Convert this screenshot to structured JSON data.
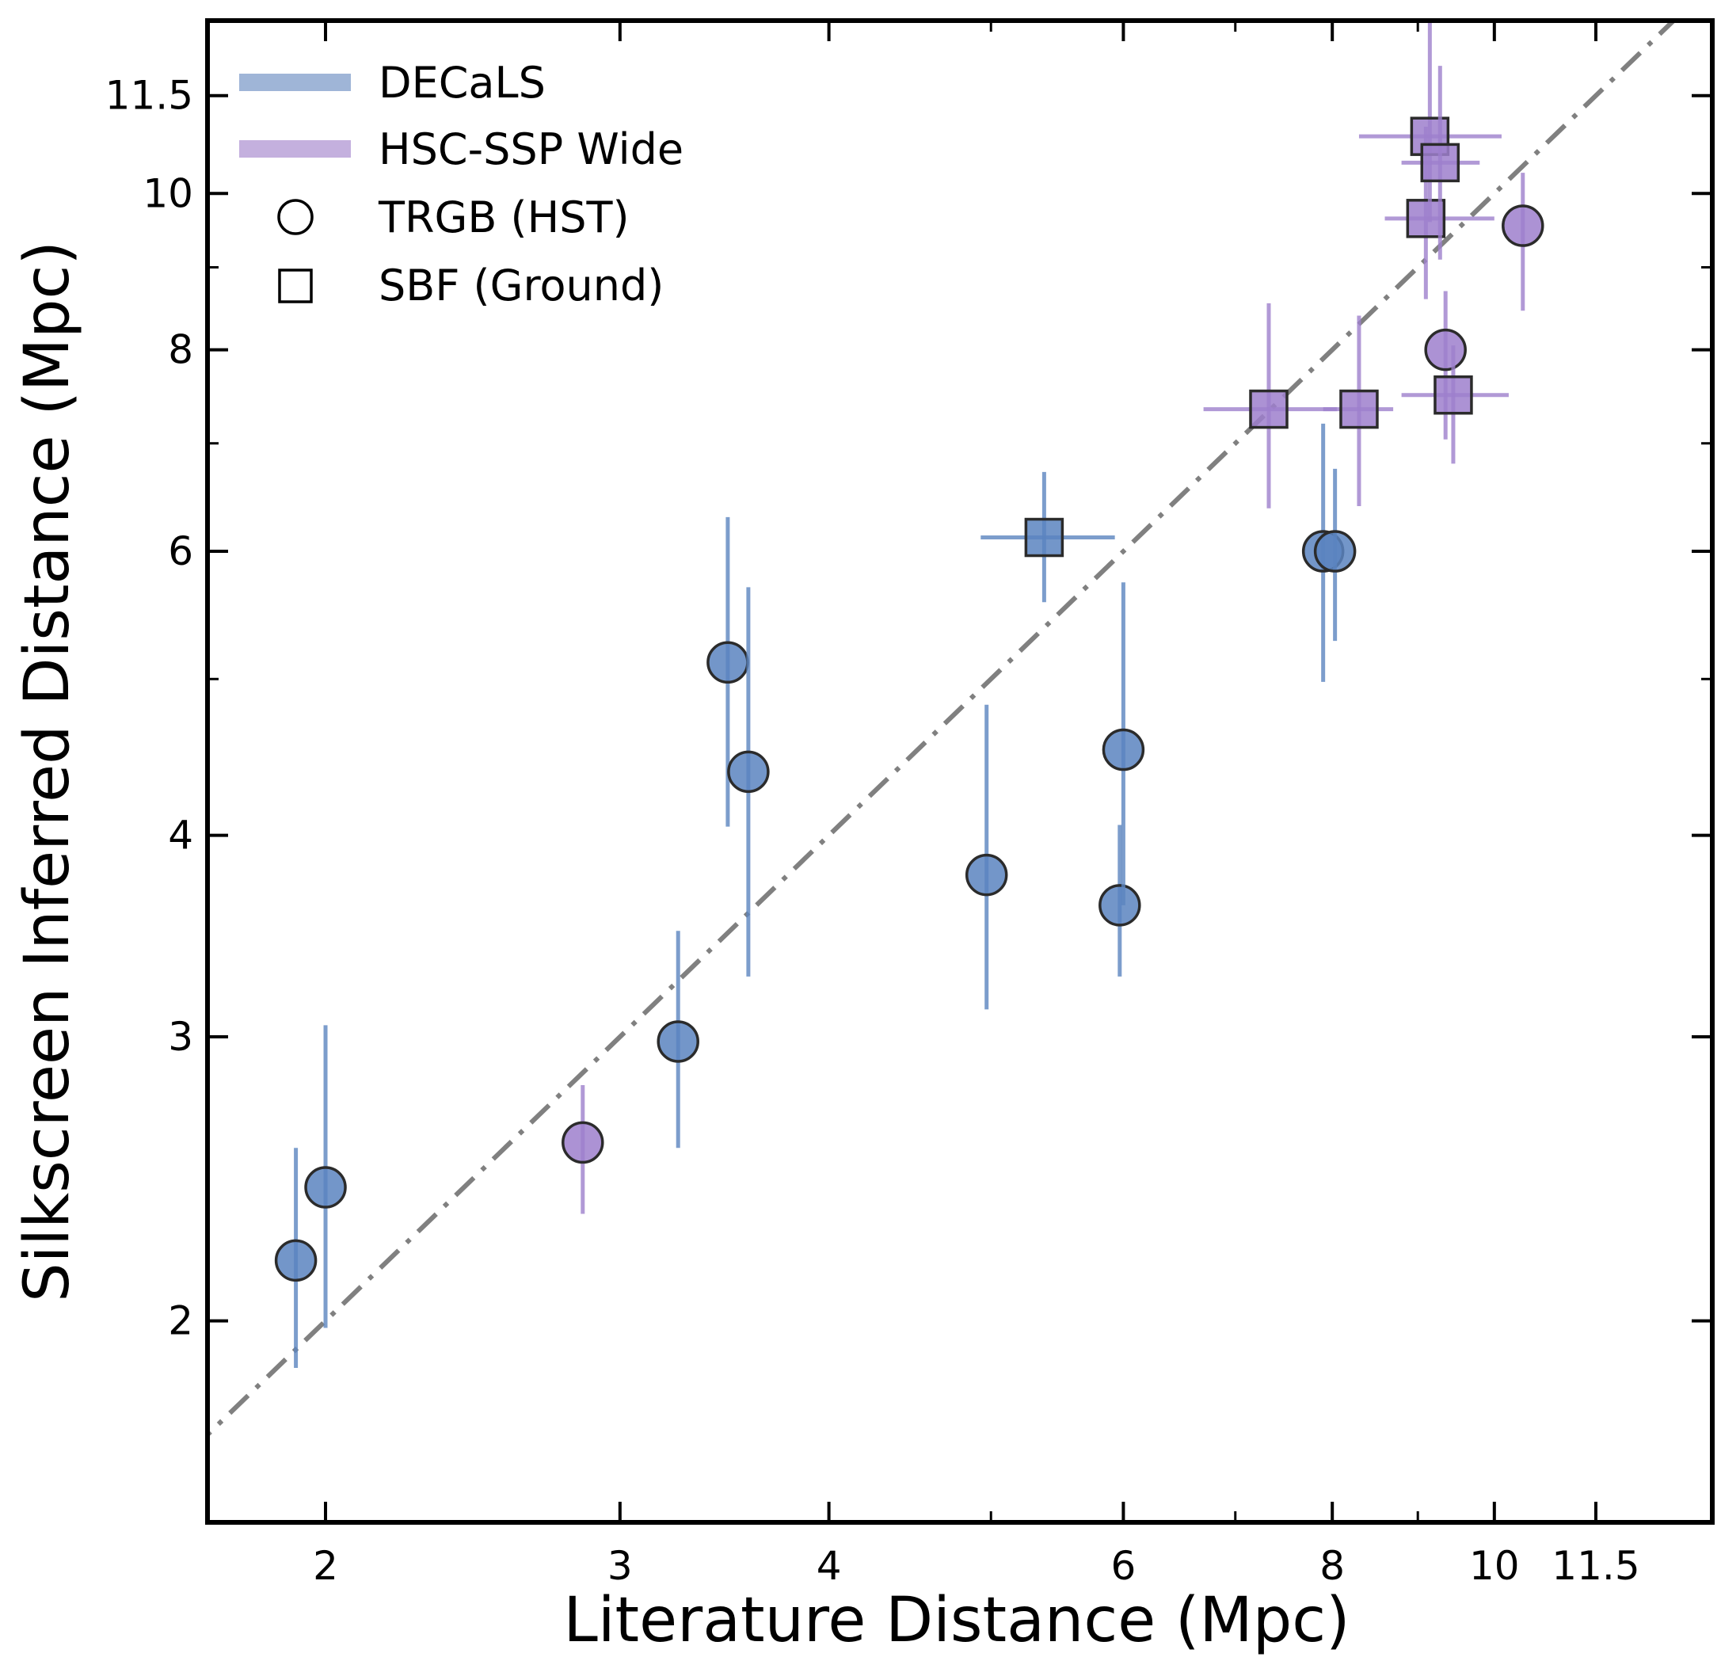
{
  "chart_data": {
    "type": "scatter",
    "xlabel": "Literature Distance (Mpc)",
    "ylabel": "Silkscreen Inferred Distance (Mpc)",
    "xscale": "log",
    "yscale": "log",
    "xlim": [
      1.7,
      13.5
    ],
    "ylim": [
      1.5,
      12.8
    ],
    "xticks": [
      2,
      3,
      4,
      6,
      8,
      10,
      11.5
    ],
    "xtick_labels": [
      "2",
      "3",
      "4",
      "6",
      "8",
      "10",
      "11.5"
    ],
    "yticks": [
      2,
      3,
      4,
      6,
      8,
      10,
      11.5
    ],
    "ytick_labels": [
      "2",
      "3",
      "4",
      "6",
      "8",
      "10",
      "11.5"
    ],
    "minor_ticks": [
      5,
      7,
      9
    ],
    "grid": false,
    "legend_placement": "top-left",
    "reference_line": {
      "label": "",
      "style": "dash-dot",
      "color": "#808080",
      "relation": "y = x"
    },
    "legend": [
      {
        "label": "DECaLS",
        "kind": "line",
        "color": "#9fb5d7"
      },
      {
        "label": "HSC-SSP Wide",
        "kind": "line",
        "color": "#c4b0de"
      },
      {
        "label": "TRGB (HST)",
        "kind": "circle"
      },
      {
        "label": "SBF (Ground)",
        "kind": "square"
      }
    ],
    "series": [
      {
        "name": "DECaLS",
        "color": "#5b84bf",
        "points": [
          {
            "x": 1.92,
            "y": 2.18,
            "ylo": 1.87,
            "yhi": 2.56,
            "method": "TRGB (HST)"
          },
          {
            "x": 2.0,
            "y": 2.42,
            "ylo": 1.98,
            "yhi": 3.05,
            "method": "TRGB (HST)"
          },
          {
            "x": 3.25,
            "y": 2.98,
            "ylo": 2.56,
            "yhi": 3.49,
            "method": "TRGB (HST)"
          },
          {
            "x": 3.48,
            "y": 5.12,
            "ylo": 4.05,
            "yhi": 6.3,
            "method": "TRGB (HST)"
          },
          {
            "x": 3.58,
            "y": 4.38,
            "ylo": 3.27,
            "yhi": 5.7,
            "method": "TRGB (HST)"
          },
          {
            "x": 4.97,
            "y": 3.78,
            "ylo": 3.12,
            "yhi": 4.82,
            "method": "TRGB (HST)"
          },
          {
            "x": 5.97,
            "y": 3.62,
            "ylo": 3.27,
            "yhi": 4.06,
            "method": "TRGB (HST)"
          },
          {
            "x": 6.0,
            "y": 4.52,
            "ylo": 3.62,
            "yhi": 5.74,
            "method": "TRGB (HST)"
          },
          {
            "x": 7.9,
            "y": 6.0,
            "ylo": 4.98,
            "yhi": 7.2,
            "method": "TRGB (HST)"
          },
          {
            "x": 8.03,
            "y": 6.0,
            "ylo": 5.28,
            "yhi": 6.75,
            "method": "TRGB (HST)"
          },
          {
            "x": 5.38,
            "y": 6.12,
            "xlo": 4.93,
            "xhi": 5.93,
            "ylo": 5.58,
            "yhi": 6.72,
            "method": "SBF (Ground)"
          }
        ]
      },
      {
        "name": "HSC-SSP Wide",
        "color": "#9d7fcc",
        "points": [
          {
            "x": 2.85,
            "y": 2.58,
            "ylo": 2.33,
            "yhi": 2.8,
            "method": "TRGB (HST)"
          },
          {
            "x": 9.35,
            "y": 8.0,
            "ylo": 7.04,
            "yhi": 8.7,
            "method": "TRGB (HST)"
          },
          {
            "x": 10.4,
            "y": 9.55,
            "ylo": 8.46,
            "yhi": 10.3,
            "method": "TRGB (HST)"
          },
          {
            "x": 7.33,
            "y": 7.35,
            "xlo": 6.7,
            "xhi": 8.05,
            "ylo": 6.38,
            "yhi": 8.55,
            "method": "SBF (Ground)"
          },
          {
            "x": 8.3,
            "y": 7.35,
            "xlo": 7.9,
            "xhi": 8.7,
            "ylo": 6.4,
            "yhi": 8.4,
            "method": "SBF (Ground)"
          },
          {
            "x": 9.45,
            "y": 7.5,
            "xlo": 8.8,
            "xhi": 10.2,
            "ylo": 6.8,
            "yhi": 8.05,
            "method": "SBF (Ground)"
          },
          {
            "x": 9.1,
            "y": 9.65,
            "xlo": 8.6,
            "xhi": 10.0,
            "ylo": 8.6,
            "yhi": 11.0,
            "method": "SBF (Ground)"
          },
          {
            "x": 9.15,
            "y": 10.85,
            "xlo": 8.3,
            "xhi": 10.1,
            "ylo": 9.6,
            "yhi": 12.8,
            "method": "SBF (Ground)"
          },
          {
            "x": 9.28,
            "y": 10.45,
            "xlo": 8.8,
            "xhi": 9.8,
            "ylo": 9.1,
            "yhi": 12.0,
            "method": "SBF (Ground)"
          }
        ]
      }
    ]
  }
}
